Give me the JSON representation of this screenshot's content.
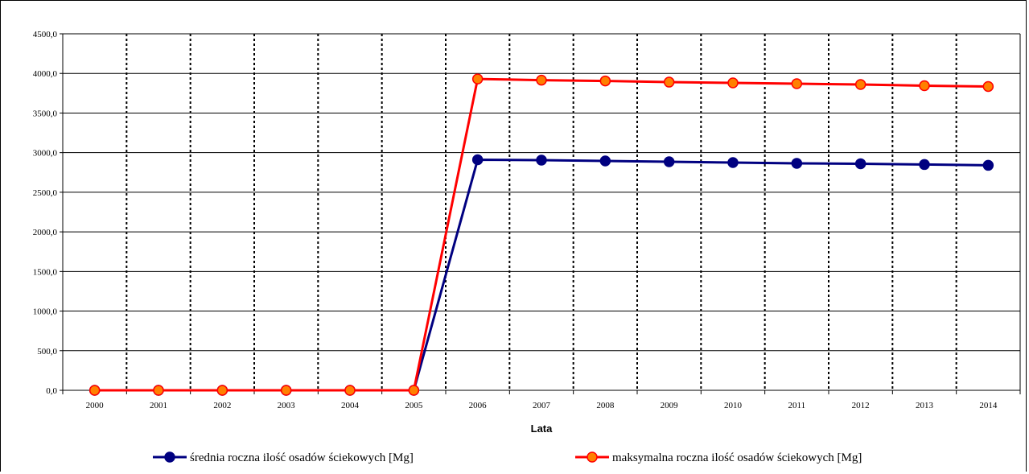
{
  "chart_data": {
    "type": "line",
    "xlabel": "Lata",
    "ylabel": "",
    "title": "",
    "categories": [
      "2000",
      "2001",
      "2002",
      "2003",
      "2004",
      "2005",
      "2006",
      "2007",
      "2008",
      "2009",
      "2010",
      "2011",
      "2012",
      "2013",
      "2014"
    ],
    "y_ticks": [
      "0,0",
      "500,0",
      "1000,0",
      "1500,0",
      "2000,0",
      "2500,0",
      "3000,0",
      "3500,0",
      "4000,0",
      "4500,0"
    ],
    "ylim": [
      0,
      4500
    ],
    "grid": {
      "horizontal": "solid",
      "vertical": "dotted"
    },
    "legend_position": "bottom",
    "series": [
      {
        "name": "średnia roczna ilość osadów ściekowych [Mg]",
        "color": "#000080",
        "marker_fill": "#000080",
        "values": [
          0,
          0,
          0,
          0,
          0,
          0,
          2910,
          2905,
          2895,
          2885,
          2875,
          2865,
          2860,
          2850,
          2840
        ]
      },
      {
        "name": "maksymalna roczna ilość osadów ściekowych [Mg]",
        "color": "#ff0000",
        "marker_fill": "#ff8000",
        "values": [
          0,
          0,
          0,
          0,
          0,
          0,
          3930,
          3915,
          3905,
          3890,
          3880,
          3870,
          3860,
          3845,
          3835
        ]
      }
    ]
  }
}
